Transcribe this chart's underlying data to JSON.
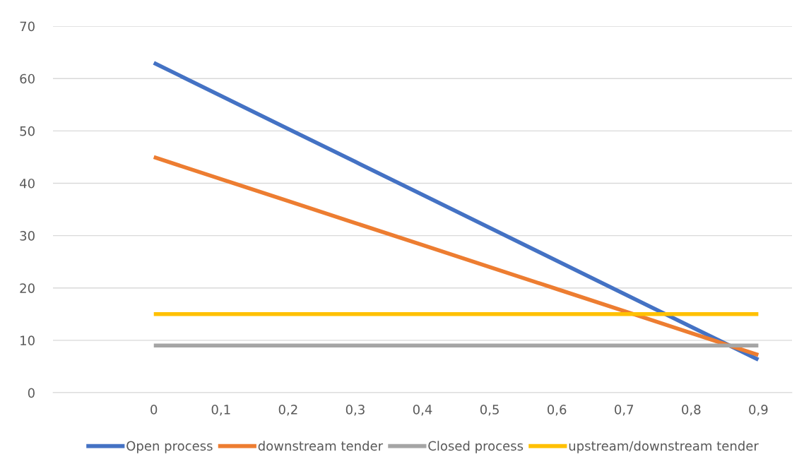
{
  "chart_data": {
    "type": "line",
    "categories": [
      null,
      "0",
      "0,1",
      "0,2",
      "0,3",
      "0,4",
      "0,5",
      "0,6",
      "0,7",
      "0,8",
      "0,9"
    ],
    "series": [
      {
        "name": "Open process",
        "color": "#4472c4",
        "values": [
          null,
          63,
          56.7,
          50.4,
          44.1,
          37.8,
          31.5,
          25.2,
          18.9,
          12.6,
          6.3
        ]
      },
      {
        "name": "downstream tender",
        "color": "#ed7d31",
        "values": [
          null,
          45,
          40.8,
          36.6,
          32.4,
          28.2,
          24,
          19.8,
          15.6,
          11.4,
          7.2
        ]
      },
      {
        "name": "Closed process",
        "color": "#a5a5a5",
        "values": [
          null,
          9,
          9,
          9,
          9,
          9,
          9,
          9,
          9,
          9,
          9
        ]
      },
      {
        "name": "upstream/downstream tender",
        "color": "#ffc000",
        "values": [
          null,
          15,
          15,
          15,
          15,
          15,
          15,
          15,
          15,
          15,
          15
        ]
      }
    ],
    "ylim": [
      0,
      70
    ],
    "yticks": [
      0,
      10,
      20,
      30,
      40,
      50,
      60,
      70
    ],
    "grid": "y",
    "legend": "bottom",
    "marker": "none",
    "line_style": "solid"
  }
}
